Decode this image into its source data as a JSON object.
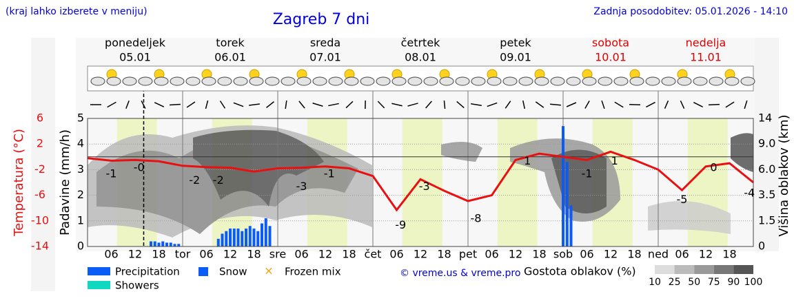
{
  "chart_data": {
    "type": "line",
    "title": "Zagreb 7 dni",
    "note": "(kraj lahko izberete v meniju)",
    "updated": "Zadnja posodobitev: 05.01.2026 - 14:10",
    "days": [
      {
        "name": "ponedeljek",
        "date": "05.01",
        "color": "#000000"
      },
      {
        "name": "torek",
        "date": "06.01",
        "color": "#000000"
      },
      {
        "name": "sreda",
        "date": "07.01",
        "color": "#000000"
      },
      {
        "name": "četrtek",
        "date": "08.01",
        "color": "#000000"
      },
      {
        "name": "petek",
        "date": "09.01",
        "color": "#000000"
      },
      {
        "name": "sobota",
        "date": "10.01",
        "color": "#e00000"
      },
      {
        "name": "nedelja",
        "date": "11.01",
        "color": "#e00000"
      }
    ],
    "xlim": [
      0,
      168
    ],
    "xticks": [
      {
        "value": 6,
        "label": "06"
      },
      {
        "value": 12,
        "label": "12"
      },
      {
        "value": 18,
        "label": "18"
      },
      {
        "value": 24,
        "label": "tor"
      },
      {
        "value": 30,
        "label": "06"
      },
      {
        "value": 36,
        "label": "12"
      },
      {
        "value": 42,
        "label": "18"
      },
      {
        "value": 48,
        "label": "sre"
      },
      {
        "value": 54,
        "label": "06"
      },
      {
        "value": 60,
        "label": "12"
      },
      {
        "value": 66,
        "label": "18"
      },
      {
        "value": 72,
        "label": "čet"
      },
      {
        "value": 78,
        "label": "06"
      },
      {
        "value": 84,
        "label": "12"
      },
      {
        "value": 90,
        "label": "18"
      },
      {
        "value": 96,
        "label": "pet"
      },
      {
        "value": 102,
        "label": "06"
      },
      {
        "value": 108,
        "label": "12"
      },
      {
        "value": 114,
        "label": "18"
      },
      {
        "value": 120,
        "label": "sob"
      },
      {
        "value": 126,
        "label": "06"
      },
      {
        "value": 132,
        "label": "12"
      },
      {
        "value": 138,
        "label": "18"
      },
      {
        "value": 144,
        "label": "ned"
      },
      {
        "value": 150,
        "label": "06"
      },
      {
        "value": 156,
        "label": "12"
      },
      {
        "value": 162,
        "label": "18"
      }
    ],
    "current_time": 14.17,
    "ylabel": "Padavine (mm/h)",
    "ylim": [
      0,
      5
    ],
    "yticks": [
      0,
      1,
      2,
      3,
      4,
      5
    ],
    "y2label": "Višina oblakov (km)",
    "y2ticks": [
      0,
      1.5,
      3.5,
      {
        "value": 6,
        "label": "6.0"
      },
      {
        "value": 9,
        "label": "9.0"
      },
      14
    ],
    "grid": true,
    "temperature": {
      "label": "Temperatura (°C)",
      "color": "#e81010",
      "lim": [
        -14,
        6
      ],
      "ticks": [
        6,
        2,
        -2,
        -6,
        -10,
        -14
      ],
      "x": [
        0,
        6,
        12,
        18,
        24,
        30,
        36,
        42,
        48,
        54,
        60,
        66,
        72,
        78,
        84,
        90,
        96,
        102,
        108,
        114,
        120,
        126,
        132,
        138,
        144,
        150,
        156,
        162,
        168
      ],
      "values": [
        -0.2,
        -0.6,
        -0.5,
        -0.7,
        -1.4,
        -1.6,
        -1.7,
        -2.3,
        -1.8,
        -1.7,
        -1.5,
        -1.8,
        -3.0,
        -8.3,
        -3.5,
        -5.3,
        -6.9,
        -6.0,
        -0.5,
        0.5,
        0.0,
        -0.5,
        0.8,
        -0.5,
        -2.0,
        -5.2,
        -1.5,
        -1.0,
        -4.0
      ],
      "labels": [
        {
          "x": 6,
          "value": -1,
          "label": "-1"
        },
        {
          "x": 13,
          "value": 0,
          "label": "-0"
        },
        {
          "x": 27,
          "value": -2,
          "label": "-2"
        },
        {
          "x": 33,
          "value": -2,
          "label": "-2"
        },
        {
          "x": 54,
          "value": -3,
          "label": "-3"
        },
        {
          "x": 61,
          "value": -1,
          "label": "-1"
        },
        {
          "x": 79,
          "value": -9,
          "label": "-9"
        },
        {
          "x": 85,
          "value": -3,
          "label": "-3"
        },
        {
          "x": 98,
          "value": -8,
          "label": "-8"
        },
        {
          "x": 111,
          "value": 1,
          "label": "1"
        },
        {
          "x": 126,
          "value": -1,
          "label": "-1"
        },
        {
          "x": 133,
          "value": 1,
          "label": "1"
        },
        {
          "x": 150,
          "value": -5,
          "label": "-5"
        },
        {
          "x": 158,
          "value": 0,
          "label": "0"
        },
        {
          "x": 167,
          "value": -4,
          "label": "-4"
        }
      ]
    },
    "series": [
      {
        "name": "Precipitation",
        "color": "#0a5cf5",
        "x": [
          16,
          17,
          18,
          19,
          20,
          21,
          22,
          23,
          33,
          34,
          35,
          36,
          37,
          38,
          39,
          40,
          41,
          42,
          43,
          44,
          45,
          46,
          120,
          121,
          122
        ],
        "values": [
          0.2,
          0.2,
          0.15,
          0.2,
          0.15,
          0.15,
          0.1,
          0.1,
          0.3,
          0.5,
          0.6,
          0.7,
          0.7,
          0.7,
          0.6,
          0.7,
          0.8,
          0.7,
          0.6,
          0.9,
          1.1,
          0.8,
          4.7,
          3.3,
          1.6
        ]
      }
    ],
    "legend_items": [
      {
        "name": "Snow",
        "color": "#0a5cf5"
      },
      {
        "name": "Frozen mix",
        "color": "#f5a000"
      },
      {
        "name": "Showers",
        "color": "#10d8c0"
      }
    ],
    "cloud_scale": {
      "title": "Gostota oblakov (%)",
      "ticks": [
        10,
        25,
        50,
        75,
        90,
        100
      ]
    },
    "credit": "© vreme.us & vreme.pro"
  }
}
